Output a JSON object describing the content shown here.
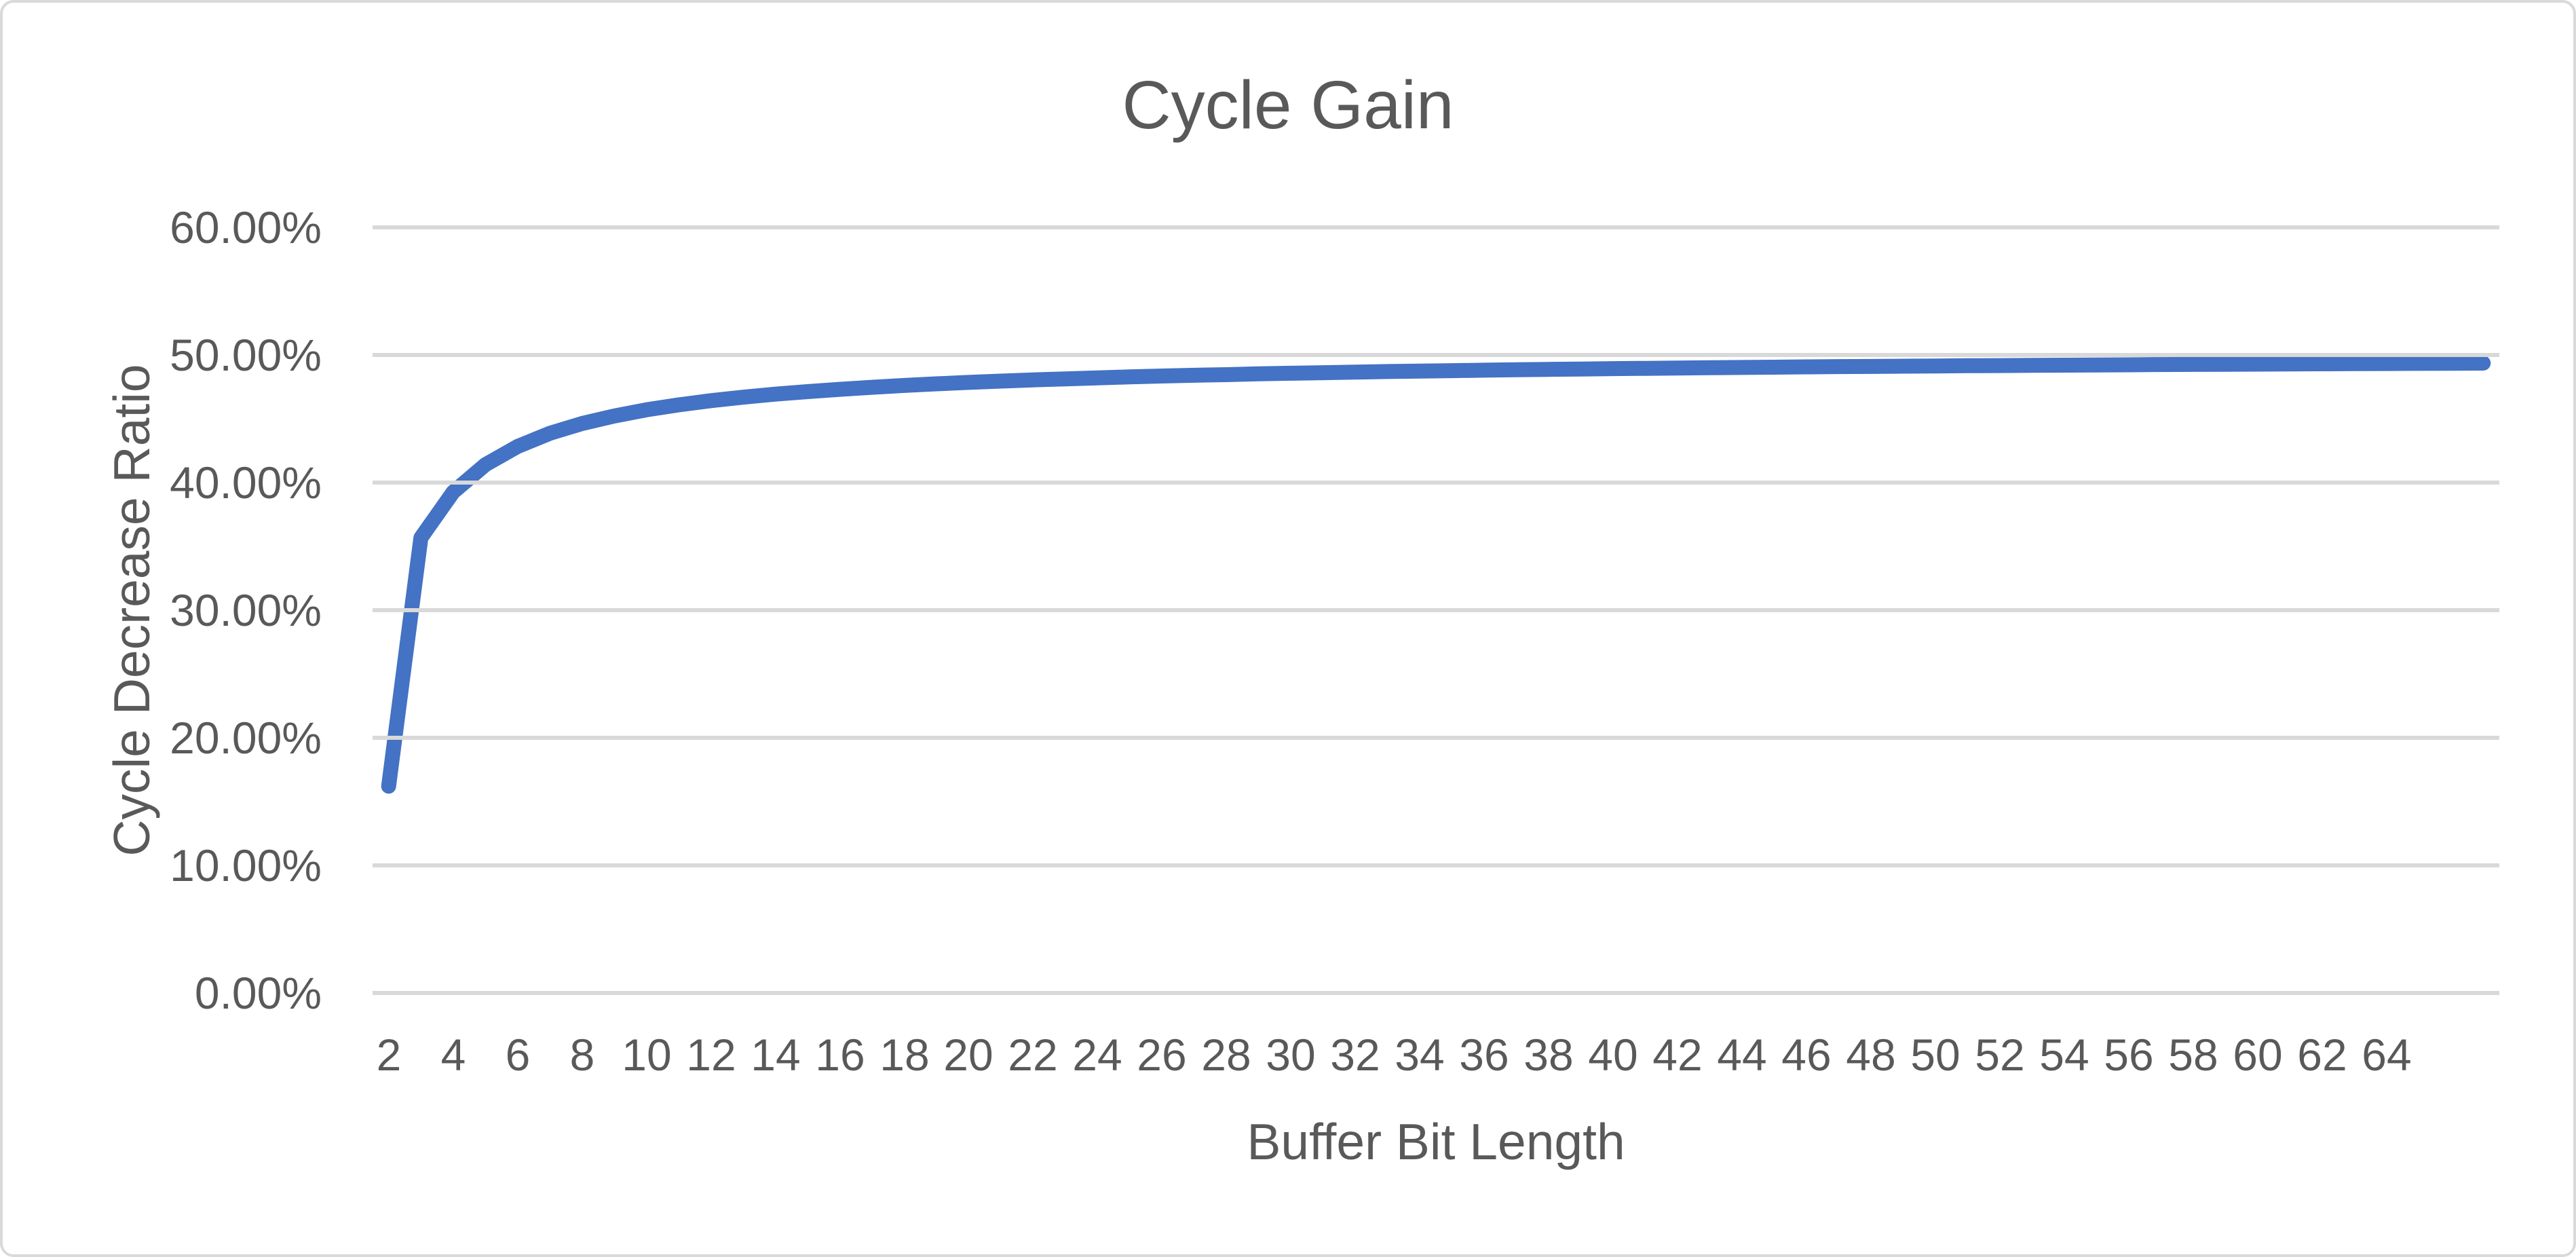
{
  "chart": {
    "title": "Cycle Gain",
    "x_axis": {
      "title": "Buffer Bit Length",
      "tick_labels": [
        "2",
        "4",
        "6",
        "8",
        "10",
        "12",
        "14",
        "16",
        "18",
        "20",
        "22",
        "24",
        "26",
        "28",
        "30",
        "32",
        "34",
        "36",
        "38",
        "40",
        "42",
        "44",
        "46",
        "48",
        "50",
        "52",
        "54",
        "56",
        "58",
        "60",
        "62",
        "64"
      ]
    },
    "y_axis": {
      "title": "Cycle Decrease Ratio",
      "tick_labels": [
        "60.00%",
        "50.00%",
        "40.00%",
        "30.00%",
        "20.00%",
        "10.00%",
        "0.00%"
      ]
    }
  },
  "colors": {
    "line": "#4472C4",
    "gridline": "#D9D9D9",
    "text": "#595959",
    "border": "#D9D9D9"
  },
  "chart_data": {
    "type": "line",
    "title": "Cycle Gain",
    "xlabel": "Buffer Bit Length",
    "ylabel": "Cycle Decrease Ratio",
    "ylim": [
      0,
      60
    ],
    "y_tick_step": 10,
    "y_tick_format": "percent",
    "x_tick_interval": 2,
    "grid": "horizontal",
    "legend": "none",
    "x": [
      2,
      3,
      4,
      5,
      6,
      7,
      8,
      9,
      10,
      11,
      12,
      13,
      14,
      15,
      16,
      17,
      18,
      19,
      20,
      21,
      22,
      23,
      24,
      25,
      26,
      27,
      28,
      29,
      30,
      31,
      32,
      33,
      34,
      35,
      36,
      37,
      38,
      39,
      40,
      41,
      42,
      43,
      44,
      45,
      46,
      47,
      48,
      49,
      50,
      51,
      52,
      53,
      54,
      55,
      56,
      57,
      58,
      59,
      60,
      61,
      62,
      63,
      64,
      65,
      66,
      67
    ],
    "values": [
      16.2,
      35.67,
      39.25,
      41.4,
      42.83,
      43.86,
      44.63,
      45.22,
      45.7,
      46.09,
      46.42,
      46.69,
      46.93,
      47.13,
      47.31,
      47.47,
      47.61,
      47.74,
      47.85,
      47.95,
      48.05,
      48.13,
      48.21,
      48.28,
      48.35,
      48.41,
      48.46,
      48.52,
      48.57,
      48.61,
      48.66,
      48.7,
      48.74,
      48.77,
      48.81,
      48.84,
      48.87,
      48.9,
      48.93,
      48.95,
      48.98,
      49.0,
      49.02,
      49.04,
      49.07,
      49.09,
      49.1,
      49.12,
      49.14,
      49.16,
      49.17,
      49.19,
      49.2,
      49.22,
      49.23,
      49.25,
      49.26,
      49.27,
      49.28,
      49.3,
      49.31,
      49.32,
      49.33,
      49.34,
      49.35,
      49.36
    ]
  }
}
